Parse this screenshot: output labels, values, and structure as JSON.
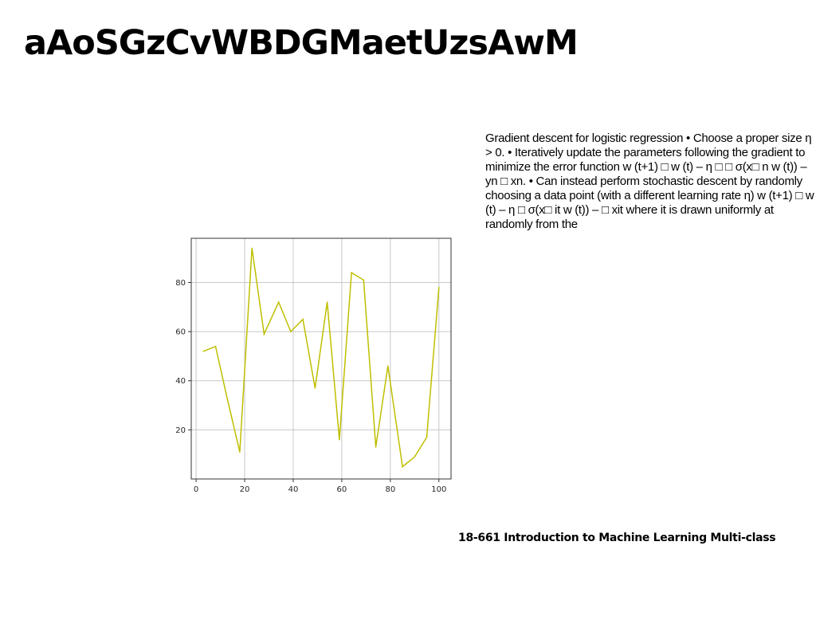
{
  "slide": {
    "title": "aAoSGzCvWBDGMaetUzsAwM",
    "body": "Gradient descent for logistic regression • Choose a proper size η > 0. • Iteratively update the parameters following the gradient to minimize the error function w (t+1) □ w (t) – η □ □ σ(x□ n w (t)) – yn □ xn. • Can instead perform stochastic descent by randomly choosing a data point (with a different learning rate η) w (t+1) □ w (t) – η □ σ(x□ it w (t)) – □ xit where it is drawn uniformly at randomly from the",
    "footer": "18-661 Introduction to Machine Learning Multi-class"
  },
  "chart_data": {
    "type": "line",
    "title": "",
    "xlabel": "",
    "ylabel": "",
    "xlim": [
      -2,
      105
    ],
    "ylim": [
      0,
      98
    ],
    "xticks": [
      0,
      20,
      40,
      60,
      80,
      100
    ],
    "yticks": [
      20,
      40,
      60,
      80
    ],
    "grid": true,
    "series": [
      {
        "color": "#bfbf00",
        "x": [
          3,
          8,
          13,
          18,
          23,
          28,
          34,
          39,
          44,
          49,
          54,
          59,
          64,
          69,
          74,
          79,
          85,
          90,
          95,
          100
        ],
        "y": [
          52,
          54,
          32,
          11,
          94,
          59,
          72,
          60,
          65,
          37,
          72,
          16,
          84,
          81,
          13,
          46,
          5,
          9,
          17,
          78
        ]
      }
    ]
  }
}
